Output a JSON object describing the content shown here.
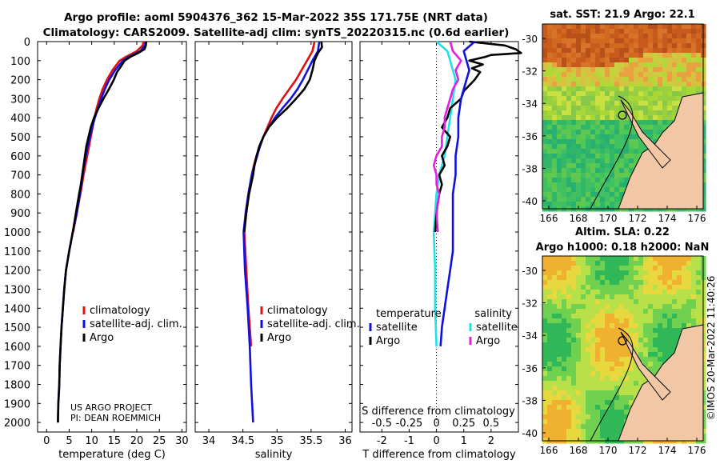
{
  "title_line1": "Argo profile: aoml 5904376_362 15-Mar-2022 35S 171.75E (NRT data)",
  "title_line2": "Climatology: CARS2009. Satellite-adj clim: synTS_20220315.nc (0.6d earlier)",
  "depth_ticks": [
    0,
    100,
    200,
    300,
    400,
    500,
    600,
    700,
    800,
    900,
    1000,
    1100,
    1200,
    1300,
    1400,
    1500,
    1600,
    1700,
    1800,
    1900,
    2000
  ],
  "colors": {
    "climatology": "#e01010",
    "satellite_adj": "#1010e0",
    "argo": "#000000",
    "temp_sat": "#20e0e8",
    "sal_argo": "#e020e0",
    "sal_sat": "#20e0e8"
  },
  "credits": {
    "line1": "US ARGO PROJECT",
    "line2": "PI: DEAN ROEMMICH"
  },
  "right_stamp": "©IMOS 20-Mar-2022 11:40:26",
  "chart_data": [
    {
      "type": "line",
      "xlabel": "temperature (deg C)",
      "xticks": [
        0,
        5,
        10,
        15,
        20,
        25,
        30
      ],
      "xlim": [
        -2,
        31
      ],
      "ylim": [
        2050,
        0
      ],
      "legend": [
        "climatology",
        "satellite-adj. clim.",
        "Argo"
      ],
      "series": [
        {
          "name": "climatology",
          "color": "red",
          "depth": [
            0,
            20,
            50,
            80,
            100,
            150,
            200,
            250,
            300,
            350,
            400,
            450,
            500,
            550,
            600,
            650,
            700,
            800,
            900,
            1000
          ],
          "values": [
            21.5,
            21.3,
            20.0,
            17.6,
            16.2,
            14.6,
            13.4,
            12.4,
            11.7,
            11.1,
            10.6,
            10.2,
            9.8,
            9.4,
            9.0,
            8.6,
            8.2,
            7.5,
            6.7,
            5.9
          ]
        },
        {
          "name": "satellite-adj. clim.",
          "color": "blue",
          "depth": [
            0,
            20,
            50,
            80,
            100,
            150,
            200,
            250,
            300,
            350,
            400,
            450,
            500,
            550,
            600,
            650,
            700,
            800,
            900,
            1000,
            1100,
            1200,
            1300,
            1400,
            1500,
            1600,
            1700,
            1800,
            1900,
            2000
          ],
          "values": [
            22.0,
            21.8,
            20.8,
            18.3,
            16.9,
            15.2,
            13.9,
            12.9,
            12.1,
            11.4,
            10.7,
            10.1,
            9.6,
            9.1,
            8.7,
            8.3,
            8.0,
            7.4,
            6.7,
            5.8,
            5.0,
            4.3,
            3.9,
            3.6,
            3.3,
            3.1,
            2.9,
            2.8,
            2.6,
            2.5
          ]
        },
        {
          "name": "Argo",
          "color": "black",
          "depth": [
            0,
            20,
            40,
            60,
            80,
            100,
            130,
            160,
            200,
            250,
            300,
            350,
            400,
            450,
            500,
            550,
            600,
            650,
            700,
            750,
            800,
            900,
            1000,
            1100,
            1200,
            1300,
            1400,
            1500,
            1600,
            1700,
            1800,
            1900,
            2000
          ],
          "values": [
            22.1,
            22.0,
            21.7,
            20.3,
            18.6,
            17.3,
            16.5,
            15.6,
            14.9,
            13.8,
            12.6,
            11.5,
            10.5,
            9.8,
            9.3,
            8.8,
            8.5,
            8.2,
            7.9,
            7.6,
            7.2,
            6.5,
            5.8,
            5.0,
            4.3,
            3.9,
            3.6,
            3.3,
            3.1,
            2.9,
            2.8,
            2.6,
            2.5
          ]
        }
      ]
    },
    {
      "type": "line",
      "xlabel": "salinity",
      "xticks": [
        34,
        34.5,
        35,
        35.5,
        36
      ],
      "xlim": [
        33.8,
        36.1
      ],
      "ylim": [
        2050,
        0
      ],
      "legend": [
        "climatology",
        "satellite-adj. clim.",
        "Argo"
      ],
      "series": [
        {
          "name": "climatology",
          "color": "red",
          "depth": [
            0,
            50,
            100,
            150,
            200,
            250,
            300,
            350,
            400,
            450,
            500,
            550,
            600,
            650,
            700,
            800,
            900,
            1000,
            1200,
            1400,
            1600
          ],
          "values": [
            35.55,
            35.52,
            35.44,
            35.36,
            35.28,
            35.18,
            35.08,
            34.99,
            34.92,
            34.86,
            34.8,
            34.75,
            34.7,
            34.66,
            34.63,
            34.58,
            34.54,
            34.52,
            34.55,
            34.58,
            34.62
          ]
        },
        {
          "name": "satellite-adj. clim.",
          "color": "blue",
          "depth": [
            0,
            50,
            100,
            150,
            200,
            250,
            300,
            350,
            400,
            450,
            500,
            550,
            600,
            650,
            700,
            800,
            900,
            1000,
            1200,
            1400,
            1600,
            1800,
            2000
          ],
          "values": [
            35.62,
            35.6,
            35.52,
            35.45,
            35.38,
            35.3,
            35.2,
            35.08,
            34.97,
            34.88,
            34.8,
            34.75,
            34.71,
            34.67,
            34.63,
            34.58,
            34.54,
            34.51,
            34.53,
            34.57,
            34.6,
            34.62,
            34.65
          ]
        },
        {
          "name": "Argo",
          "color": "black",
          "depth": [
            0,
            30,
            60,
            100,
            150,
            200,
            250,
            300,
            350,
            400,
            450,
            500,
            550,
            600,
            650,
            700,
            800,
            900,
            1000
          ],
          "values": [
            35.65,
            35.66,
            35.6,
            35.55,
            35.52,
            35.48,
            35.4,
            35.28,
            35.15,
            35.0,
            34.88,
            34.8,
            34.74,
            34.7,
            34.67,
            34.65,
            34.59,
            34.55,
            34.52
          ]
        }
      ]
    },
    {
      "type": "line",
      "xlabel": "T difference from climatology",
      "xticks": [
        -2,
        -1,
        0,
        1,
        2
      ],
      "xlim": [
        -2.8,
        3.0
      ],
      "top_label": "S difference from climatology",
      "top_ticks": [
        "-0.5",
        "-0.25",
        "0",
        "0.25",
        "0.5"
      ],
      "top_tick_positions": [
        -2,
        -1,
        0,
        1,
        2
      ],
      "legend_left_title": "temperature",
      "legend_right_title": "salinity",
      "legend_left": [
        "satellite",
        "Argo"
      ],
      "legend_right": [
        "satellite",
        "Argo"
      ],
      "series": [
        {
          "name": "temperature satellite",
          "color": "cyan",
          "depth": [
            0,
            50,
            100,
            150,
            200,
            300,
            400,
            500,
            600,
            700,
            800,
            900,
            1000,
            1200,
            1400,
            1600
          ],
          "values": [
            0.0,
            0.4,
            0.5,
            0.6,
            0.7,
            0.6,
            0.5,
            0.4,
            0.3,
            0.1,
            0.0,
            -0.05,
            -0.1,
            -0.05,
            -0.05,
            0.0
          ]
        },
        {
          "name": "temperature Argo",
          "color": "black",
          "depth": [
            0,
            20,
            40,
            60,
            70,
            80,
            100,
            120,
            140,
            160,
            180,
            200,
            230,
            260,
            300,
            350,
            400,
            450,
            500,
            550,
            600,
            650,
            700,
            750,
            800,
            900,
            1000
          ],
          "values": [
            1.2,
            2.5,
            2.9,
            3.1,
            2.0,
            1.8,
            1.2,
            1.7,
            1.3,
            1.6,
            1.5,
            1.4,
            1.2,
            1.0,
            0.9,
            0.5,
            0.4,
            0.2,
            0.5,
            0.4,
            0.2,
            0.3,
            0.1,
            0.2,
            0.1,
            0.0,
            -0.05
          ]
        },
        {
          "name": "salinity satellite",
          "color": "blue",
          "depth": [
            0,
            50,
            100,
            150,
            200,
            300,
            400,
            500,
            600,
            700,
            800,
            900,
            1000,
            1100,
            1200,
            1300,
            1400,
            1500,
            1600
          ],
          "values": [
            1.4,
            1.0,
            1.1,
            1.2,
            1.1,
            0.9,
            0.8,
            0.8,
            0.7,
            0.7,
            0.6,
            0.6,
            0.6,
            0.6,
            0.5,
            0.4,
            0.3,
            0.2,
            0.15
          ]
        },
        {
          "name": "salinity Argo",
          "color": "magenta",
          "depth": [
            0,
            50,
            100,
            150,
            200,
            250,
            300,
            350,
            400,
            450,
            500,
            550,
            600,
            650,
            700,
            750,
            800,
            900,
            1000
          ],
          "values": [
            0.5,
            0.6,
            0.9,
            0.7,
            0.8,
            0.6,
            0.5,
            0.4,
            0.3,
            0.3,
            0.2,
            0.2,
            0.0,
            -0.1,
            0.0,
            0.0,
            0.1,
            0.0,
            0.05
          ]
        }
      ]
    },
    {
      "type": "heatmap",
      "title": "sat. SST: 21.9 Argo: 22.1",
      "xticks": [
        166,
        168,
        170,
        172,
        174,
        176
      ],
      "yticks": [
        -30,
        -32,
        -34,
        -36,
        -38,
        -40
      ]
    },
    {
      "type": "heatmap",
      "title_line1": "Altim. SLA: 0.22",
      "title_line2": "Argo h1000: 0.18 h2000: NaN",
      "xticks": [
        166,
        168,
        170,
        172,
        174,
        176
      ],
      "yticks": [
        -30,
        -32,
        -34,
        -36,
        -38,
        -40
      ]
    }
  ]
}
